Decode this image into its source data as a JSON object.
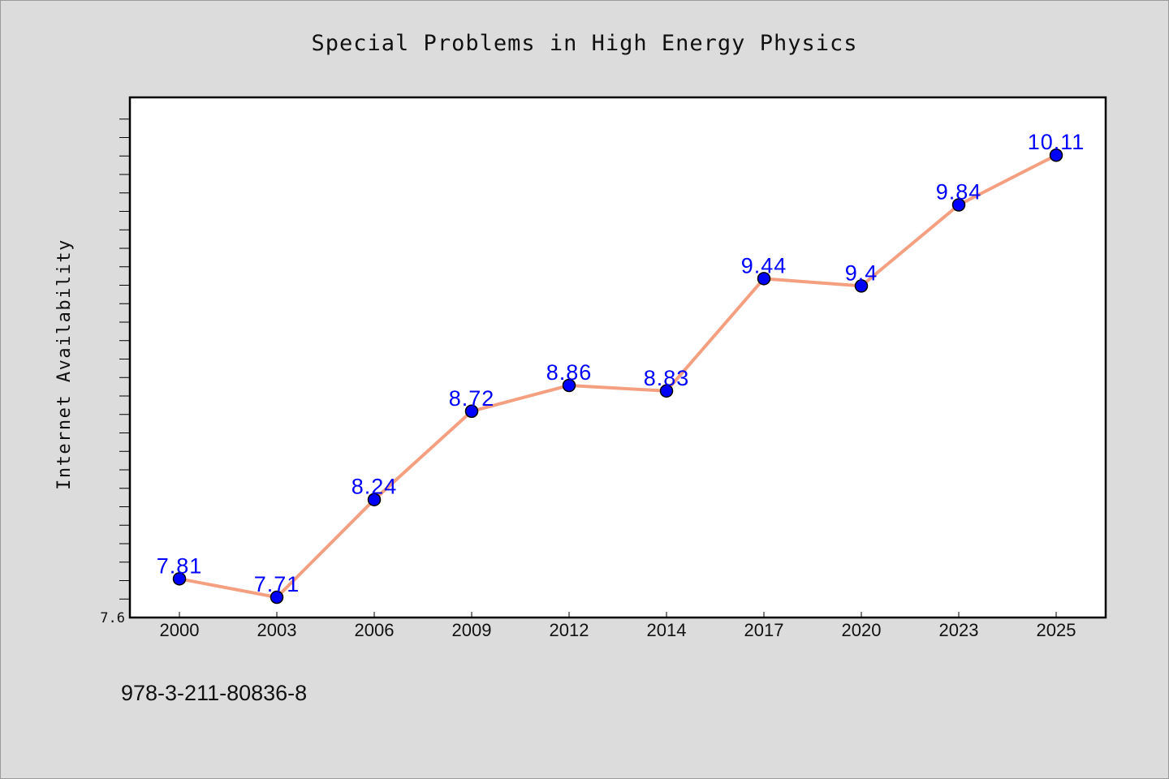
{
  "chart_data": {
    "type": "line",
    "title": "Special Problems in High Energy Physics",
    "xlabel": "",
    "ylabel": "Internet Availability",
    "categories": [
      "2000",
      "2003",
      "2006",
      "2009",
      "2012",
      "2014",
      "2017",
      "2020",
      "2023",
      "2025"
    ],
    "series": [
      {
        "values": [
          7.81,
          7.71,
          8.24,
          8.72,
          8.86,
          8.83,
          9.44,
          9.4,
          9.84,
          10.11
        ],
        "labels": [
          "7.81",
          "7.71",
          "8.24",
          "8.72",
          "8.86",
          "8.83",
          "9.44",
          "9.4",
          "9.84",
          "10.11"
        ],
        "line_color": "#f4a080",
        "marker_color": "#0000ff"
      }
    ],
    "ylim": [
      7.6,
      10.4
    ],
    "yticks": [
      "7.6"
    ],
    "grid": false,
    "legend": "none"
  },
  "footer": {
    "isbn": "978-3-211-80836-8"
  },
  "colors": {
    "background": "#dcdcdc",
    "plot_background": "#ffffff",
    "line": "#f4a080",
    "marker": "#0000ff",
    "data_label": "#0000ff"
  }
}
